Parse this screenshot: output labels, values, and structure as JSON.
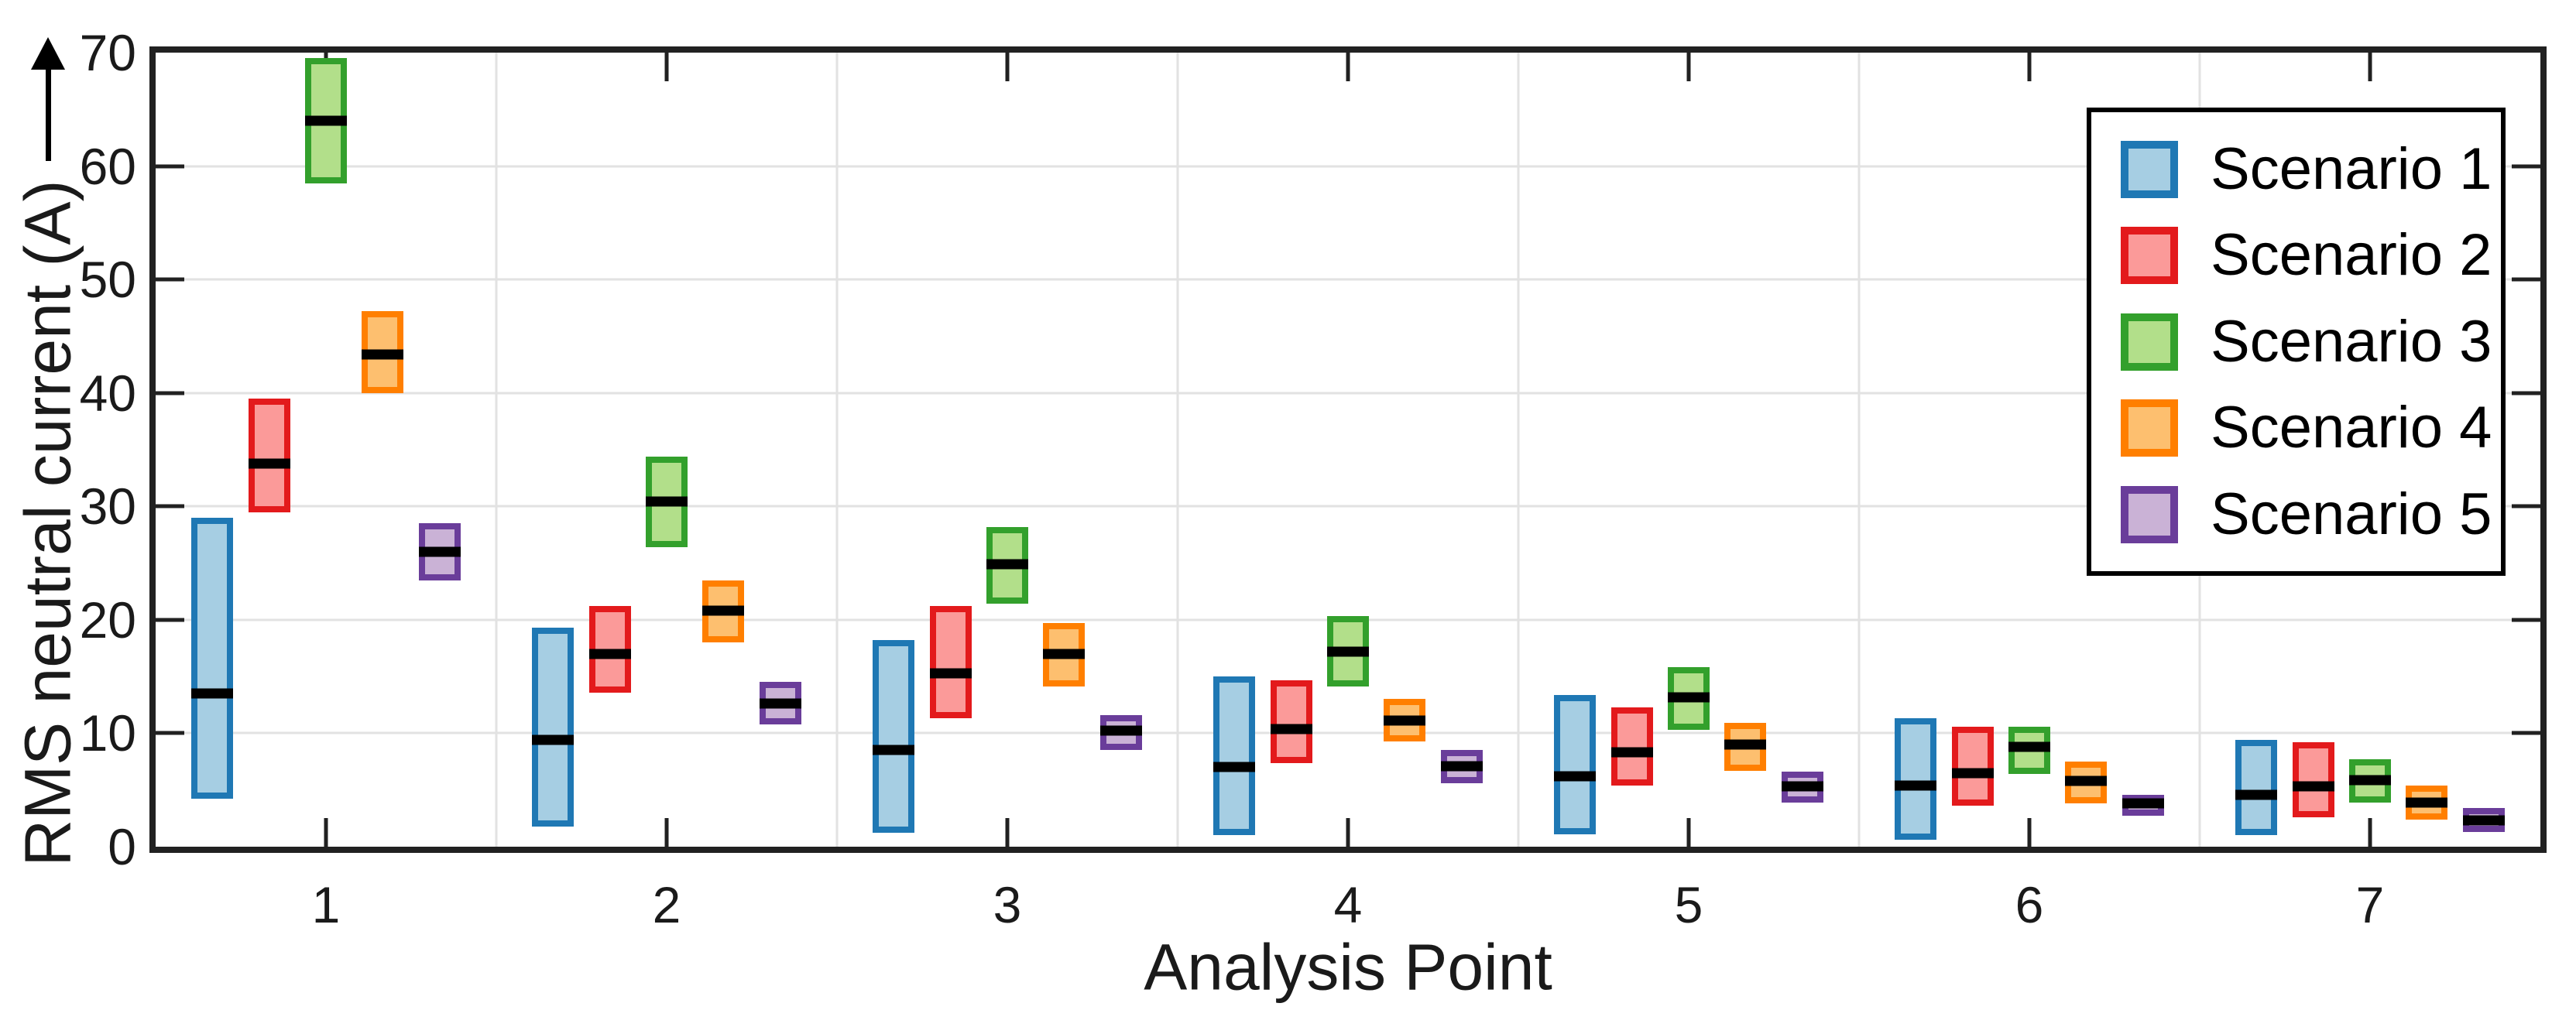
{
  "chart_data": {
    "type": "grouped_box",
    "xlabel": "Analysis Point",
    "ylabel": "RMS neutral current (A)",
    "xlim": [
      0.5,
      7.5
    ],
    "ylim": [
      0,
      70
    ],
    "x_categories": [
      1,
      2,
      3,
      4,
      5,
      6,
      7
    ],
    "y_ticks": [
      0,
      10,
      20,
      30,
      40,
      50,
      60,
      70
    ],
    "group_separators": [
      1.5,
      2.5,
      3.5,
      4.5,
      5.5,
      6.5
    ],
    "group_offset_step": 0.1667,
    "grid": "on",
    "legend_position": "top-right",
    "colors": {
      "axis": "#212121",
      "gridline": "#e2e2e2",
      "median": "#000000",
      "text": "#1a1a1a"
    },
    "series": [
      {
        "name": "Scenario 1",
        "border_color": "#1F78B4",
        "fill_color": "#A6CEE3",
        "boxes": [
          {
            "low": 4.2,
            "median": 13.5,
            "high": 29.0
          },
          {
            "low": 1.8,
            "median": 9.4,
            "high": 19.3
          },
          {
            "low": 1.2,
            "median": 8.5,
            "high": 18.2
          },
          {
            "low": 1.0,
            "median": 7.0,
            "high": 15.0
          },
          {
            "low": 1.1,
            "median": 6.2,
            "high": 13.4
          },
          {
            "low": 0.6,
            "median": 5.4,
            "high": 11.3
          },
          {
            "low": 1.0,
            "median": 4.6,
            "high": 9.4
          }
        ]
      },
      {
        "name": "Scenario 2",
        "border_color": "#E31A1C",
        "fill_color": "#FB9A99",
        "boxes": [
          {
            "low": 29.5,
            "median": 33.8,
            "high": 39.5
          },
          {
            "low": 13.6,
            "median": 17.0,
            "high": 21.2
          },
          {
            "low": 11.3,
            "median": 15.3,
            "high": 21.2
          },
          {
            "low": 7.4,
            "median": 10.4,
            "high": 14.7
          },
          {
            "low": 5.4,
            "median": 8.3,
            "high": 12.3
          },
          {
            "low": 3.6,
            "median": 6.5,
            "high": 10.6
          },
          {
            "low": 2.6,
            "median": 5.3,
            "high": 9.2
          }
        ]
      },
      {
        "name": "Scenario 3",
        "border_color": "#33A02C",
        "fill_color": "#B2DF8A",
        "boxes": [
          {
            "low": 58.5,
            "median": 64.0,
            "high": 69.5
          },
          {
            "low": 26.4,
            "median": 30.4,
            "high": 34.4
          },
          {
            "low": 21.4,
            "median": 24.9,
            "high": 28.2
          },
          {
            "low": 14.1,
            "median": 17.2,
            "high": 20.3
          },
          {
            "low": 10.3,
            "median": 13.2,
            "high": 15.8
          },
          {
            "low": 6.4,
            "median": 8.8,
            "high": 10.6
          },
          {
            "low": 3.9,
            "median": 5.9,
            "high": 7.7
          }
        ]
      },
      {
        "name": "Scenario 4",
        "border_color": "#FF7F00",
        "fill_color": "#FDBF6F",
        "boxes": [
          {
            "low": 40.0,
            "median": 43.4,
            "high": 47.2
          },
          {
            "low": 18.0,
            "median": 20.8,
            "high": 23.5
          },
          {
            "low": 14.1,
            "median": 17.0,
            "high": 19.7
          },
          {
            "low": 9.3,
            "median": 11.1,
            "high": 13.0
          },
          {
            "low": 6.7,
            "median": 9.0,
            "high": 10.9
          },
          {
            "low": 3.8,
            "median": 5.8,
            "high": 7.5
          },
          {
            "low": 2.4,
            "median": 3.9,
            "high": 5.4
          }
        ]
      },
      {
        "name": "Scenario 5",
        "border_color": "#6A3D9A",
        "fill_color": "#CAB2D6",
        "boxes": [
          {
            "low": 23.5,
            "median": 26.0,
            "high": 28.5
          },
          {
            "low": 10.8,
            "median": 12.6,
            "high": 14.5
          },
          {
            "low": 8.5,
            "median": 10.2,
            "high": 11.6
          },
          {
            "low": 5.6,
            "median": 7.1,
            "high": 8.5
          },
          {
            "low": 3.9,
            "median": 5.3,
            "high": 6.6
          },
          {
            "low": 2.7,
            "median": 3.8,
            "high": 4.6
          },
          {
            "low": 1.3,
            "median": 2.3,
            "high": 3.4
          }
        ]
      }
    ]
  }
}
